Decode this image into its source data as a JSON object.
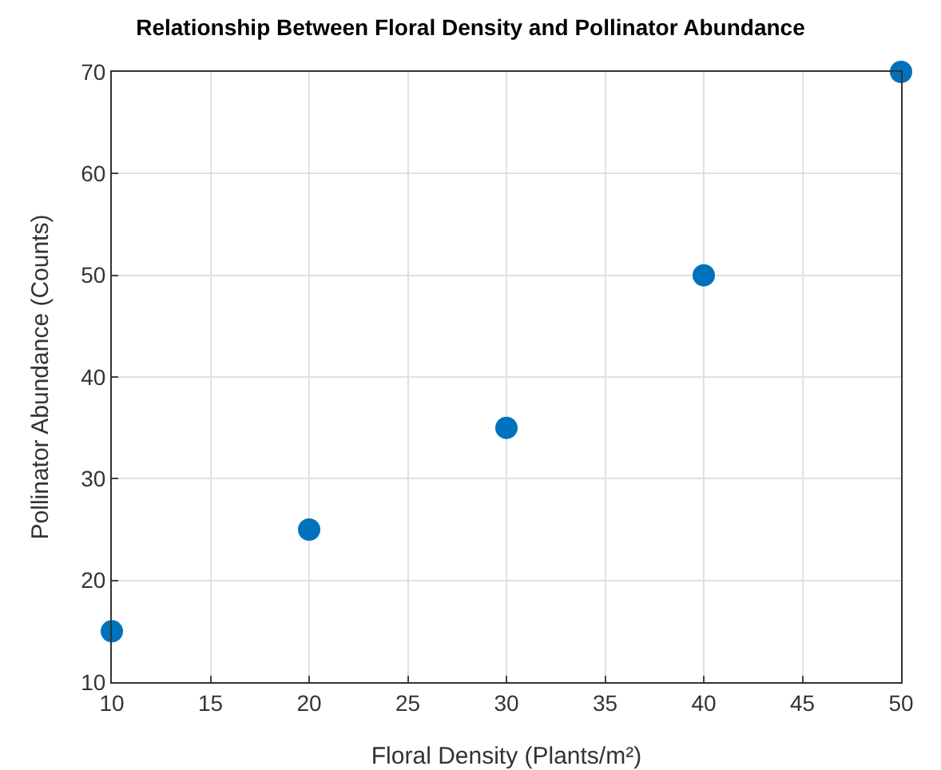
{
  "chart_data": {
    "type": "scatter",
    "title": "Relationship Between Floral Density and Pollinator Abundance",
    "xlabel": "Floral Density (Plants/m²)",
    "ylabel": "Pollinator Abundance (Counts)",
    "x": [
      10,
      20,
      30,
      40,
      50
    ],
    "series": [
      {
        "color": "#0072bd",
        "values": [
          15,
          25,
          35,
          50,
          70
        ]
      }
    ],
    "xlim": [
      10,
      50
    ],
    "xticks": [
      10,
      15,
      20,
      25,
      30,
      35,
      40,
      45,
      50
    ],
    "ylim": [
      10,
      70
    ],
    "yticks": [
      10,
      20,
      30,
      40,
      50,
      60,
      70
    ],
    "grid": true,
    "marker": "circle"
  }
}
